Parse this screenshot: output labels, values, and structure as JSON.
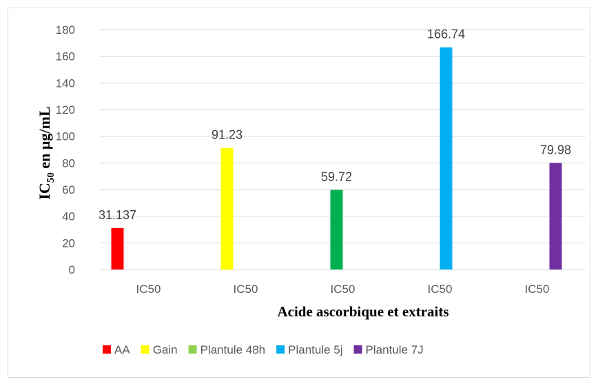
{
  "chart_data": {
    "type": "bar",
    "categories": [
      "IC50",
      "IC50",
      "IC50",
      "IC50",
      "IC50"
    ],
    "series": [
      {
        "name": "AA",
        "color": "#ff0000",
        "values": [
          31.137,
          null,
          null,
          null,
          null
        ],
        "label": "31.137"
      },
      {
        "name": "Gain",
        "color": "#ffff00",
        "values": [
          null,
          91.23,
          null,
          null,
          null
        ],
        "label": "91.23"
      },
      {
        "name": "Plantule 48h",
        "color": "#00b050",
        "legend_color": "#92d050",
        "values": [
          null,
          null,
          59.72,
          null,
          null
        ],
        "label": "59.72"
      },
      {
        "name": "Plantule 5j",
        "color": "#00b0f0",
        "values": [
          null,
          null,
          null,
          166.74,
          null
        ],
        "label": "166.74"
      },
      {
        "name": "Plantule 7J",
        "color": "#7030a0",
        "values": [
          null,
          null,
          null,
          null,
          79.98
        ],
        "label": "79.98"
      }
    ],
    "ylim": [
      0,
      180
    ],
    "yticks": [
      0,
      20,
      40,
      60,
      80,
      100,
      120,
      140,
      160,
      180
    ],
    "xlabel": "Acide ascorbique et extraits",
    "ylabel_main": "IC",
    "ylabel_sub": "50",
    "ylabel_rest": " en µg/mL",
    "grid": true,
    "legend_position": "bottom"
  }
}
